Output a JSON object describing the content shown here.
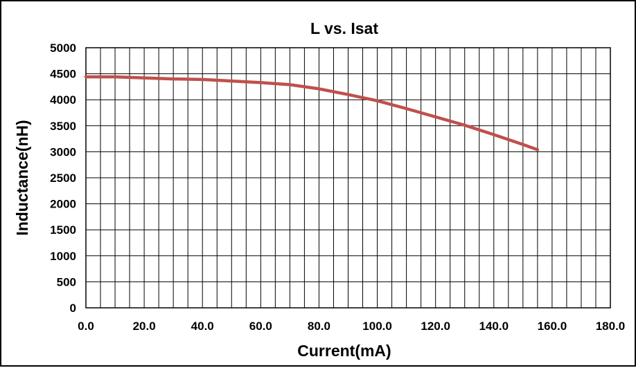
{
  "chart_data": {
    "type": "line",
    "title": "L vs. Isat",
    "xlabel": "Current(mA)",
    "ylabel": "Inductance(nH)",
    "xlim": [
      0,
      180
    ],
    "ylim": [
      0,
      5000
    ],
    "xticks": [
      0,
      20,
      40,
      60,
      80,
      100,
      120,
      140,
      160,
      180
    ],
    "xtick_labels": [
      "0.0",
      "20.0",
      "40.0",
      "60.0",
      "80.0",
      "100.0",
      "120.0",
      "140.0",
      "160.0",
      "180.0"
    ],
    "yticks": [
      0,
      500,
      1000,
      1500,
      2000,
      2500,
      3000,
      3500,
      4000,
      4500,
      5000
    ],
    "ytick_labels": [
      "0",
      "500",
      "1000",
      "1500",
      "2000",
      "2500",
      "3000",
      "3500",
      "4000",
      "4500",
      "5000"
    ],
    "minor_x_step": 5,
    "grid": true,
    "series": [
      {
        "color": "#c0504d",
        "x": [
          0,
          10,
          20,
          30,
          40,
          50,
          60,
          70,
          80,
          90,
          100,
          110,
          120,
          130,
          140,
          150,
          155
        ],
        "y": [
          4440,
          4440,
          4420,
          4400,
          4390,
          4360,
          4330,
          4290,
          4210,
          4100,
          3980,
          3830,
          3670,
          3510,
          3330,
          3140,
          3040
        ]
      }
    ]
  }
}
